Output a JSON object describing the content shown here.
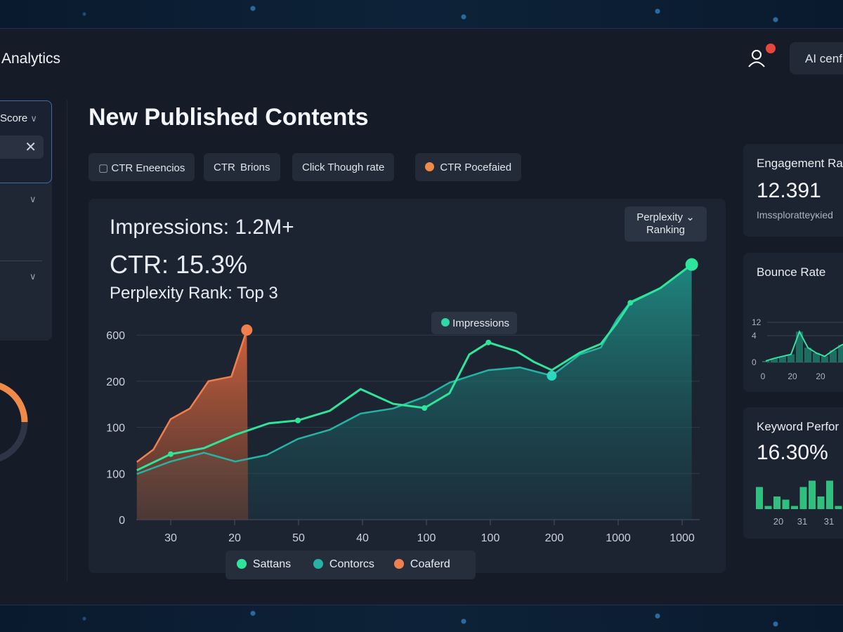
{
  "header": {
    "title": "Analytics",
    "ai_button": "AI cenf",
    "user_icon": "user-icon",
    "notification_color": "#e8453c"
  },
  "sidebar": {
    "score_label": "Score",
    "clear_icon": "close-icon",
    "gauge_color": "#f08a48"
  },
  "main": {
    "title": "New Published Contents",
    "filters": [
      {
        "label": "CTR Eneencios",
        "icon": "folder-icon"
      },
      {
        "label": "CTR  Brions"
      },
      {
        "label": "Click Though rate"
      },
      {
        "label": "CTR Pocefaied",
        "icon": "orange-dot"
      }
    ],
    "metrics": {
      "impressions": "Impressions: 1.2M+",
      "ctr": "CTR: 15.3%",
      "rank": "Perplexity Rank: Top 3"
    },
    "tooltip_impressions": "Impressions",
    "tooltip_ranking": "Perplexity ⌄ Ranking"
  },
  "chart_data": {
    "type": "area",
    "x_tick_labels": [
      "30",
      "20",
      "50",
      "40",
      "100",
      "100",
      "200",
      "1000",
      "1000"
    ],
    "y_tick_labels": [
      "0",
      "100",
      "100",
      "200",
      "600"
    ],
    "note_units": "x in tick index (0 = first tick), y in tick index (0 = bottom gridline)",
    "grid": true,
    "legend": "bottom-center",
    "series": [
      {
        "name": "Sattans",
        "color": "#2ee59a",
        "points": [
          [
            -0.53,
            1.07
          ],
          [
            0,
            1.42
          ],
          [
            0.52,
            1.55
          ],
          [
            1.01,
            1.84
          ],
          [
            1.54,
            2.09
          ],
          [
            1.99,
            2.15
          ],
          [
            2.49,
            2.36
          ],
          [
            2.97,
            2.83
          ],
          [
            3.48,
            2.51
          ],
          [
            3.97,
            2.42
          ],
          [
            4.36,
            2.74
          ],
          [
            4.67,
            3.58
          ],
          [
            4.97,
            3.84
          ],
          [
            5.41,
            3.65
          ],
          [
            5.68,
            3.42
          ],
          [
            5.96,
            3.24
          ],
          [
            6.4,
            3.62
          ],
          [
            6.73,
            3.81
          ],
          [
            6.98,
            4.26
          ],
          [
            7.19,
            4.7
          ],
          [
            7.66,
            5.02
          ],
          [
            8.15,
            5.53
          ]
        ]
      },
      {
        "name": "Contorcs",
        "color": "#26b3a3",
        "points": [
          [
            -0.53,
            0.99
          ],
          [
            0,
            1.26
          ],
          [
            0.52,
            1.45
          ],
          [
            1.01,
            1.26
          ],
          [
            1.5,
            1.4
          ],
          [
            1.99,
            1.75
          ],
          [
            2.49,
            1.95
          ],
          [
            2.97,
            2.3
          ],
          [
            3.48,
            2.41
          ],
          [
            3.97,
            2.66
          ],
          [
            4.36,
            2.97
          ],
          [
            4.97,
            3.24
          ],
          [
            5.46,
            3.3
          ],
          [
            5.96,
            3.12
          ],
          [
            6.4,
            3.58
          ],
          [
            6.73,
            3.73
          ],
          [
            6.98,
            4.34
          ],
          [
            7.19,
            4.72
          ],
          [
            7.66,
            5.02
          ],
          [
            8.15,
            5.53
          ]
        ]
      },
      {
        "name": "Coaferd",
        "color": "#f07f4e",
        "points": [
          [
            -0.53,
            1.25
          ],
          [
            -0.27,
            1.52
          ],
          [
            0,
            2.18
          ],
          [
            0.3,
            2.41
          ],
          [
            0.59,
            3.0
          ],
          [
            0.95,
            3.1
          ],
          [
            1.19,
            4.11
          ]
        ]
      }
    ]
  },
  "right": {
    "engagement": {
      "title": "Engagement Ra",
      "value": "12.391",
      "sub": "Imssploratteyĸied"
    },
    "bounce": {
      "title": "Bounce Rate",
      "y_ticks": [
        "0",
        "4",
        "12"
      ],
      "x_ticks": [
        "0",
        "20",
        "20"
      ],
      "values": [
        0.2,
        0.6,
        0.9,
        1.2,
        4.6,
        2.2,
        1.4,
        0.9,
        1.8,
        2.6,
        3.0
      ]
    },
    "keyword": {
      "title": "Keyword Perfor",
      "value": "16.30%",
      "x_ticks": [
        "20",
        "31",
        "31"
      ],
      "bars": [
        0.7,
        0.1,
        0.4,
        0.3,
        0.1,
        0.7,
        0.9,
        0.4,
        0.9,
        0.1,
        0.6
      ]
    }
  }
}
